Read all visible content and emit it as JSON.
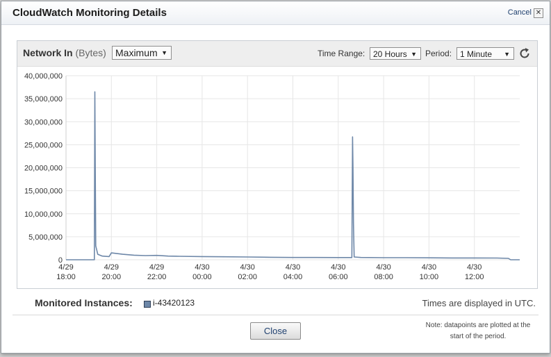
{
  "dialog": {
    "title": "CloudWatch Monitoring Details",
    "cancel_label": "Cancel",
    "close_x": "✕"
  },
  "panel": {
    "metric_name": "Network In",
    "metric_unit": "(Bytes)",
    "statistic": "Maximum",
    "time_range_label": "Time Range:",
    "time_range_value": "20 Hours",
    "period_label": "Period:",
    "period_value": "1 Minute"
  },
  "footer": {
    "monitored_label": "Monitored Instances:",
    "instance_id": "i-43420123",
    "utc_note": "Times are displayed in UTC.",
    "close_label": "Close",
    "note_line1": "Note: datapoints are plotted at the",
    "note_line2": "start of the period."
  },
  "colors": {
    "series": "#6d87a8",
    "series_dark": "#2f6f73",
    "grid": "#e6e6e6"
  },
  "chart_data": {
    "type": "line",
    "ylim": [
      0,
      40000000
    ],
    "yticks": [
      "0",
      "5,000,000",
      "10,000,000",
      "15,000,000",
      "20,000,000",
      "25,000,000",
      "30,000,000",
      "35,000,000",
      "40,000,000"
    ],
    "ytick_values": [
      0,
      5000000,
      10000000,
      15000000,
      20000000,
      25000000,
      30000000,
      35000000,
      40000000
    ],
    "xlim_hours": [
      18,
      38
    ],
    "xticks": [
      {
        "hour": 18,
        "date": "4/29",
        "time": "18:00"
      },
      {
        "hour": 20,
        "date": "4/29",
        "time": "20:00"
      },
      {
        "hour": 22,
        "date": "4/29",
        "time": "22:00"
      },
      {
        "hour": 24,
        "date": "4/30",
        "time": "00:00"
      },
      {
        "hour": 26,
        "date": "4/30",
        "time": "02:00"
      },
      {
        "hour": 28,
        "date": "4/30",
        "time": "04:00"
      },
      {
        "hour": 30,
        "date": "4/30",
        "time": "06:00"
      },
      {
        "hour": 32,
        "date": "4/30",
        "time": "08:00"
      },
      {
        "hour": 34,
        "date": "4/30",
        "time": "10:00"
      },
      {
        "hour": 36,
        "date": "4/30",
        "time": "12:00"
      }
    ],
    "grid": true,
    "series": [
      {
        "name": "i-43420123",
        "points": [
          [
            18.0,
            0
          ],
          [
            19.25,
            0
          ],
          [
            19.27,
            36500000
          ],
          [
            19.29,
            20000000
          ],
          [
            19.31,
            3000000
          ],
          [
            19.4,
            1200000
          ],
          [
            19.6,
            800000
          ],
          [
            19.9,
            700000
          ],
          [
            20.0,
            1500000
          ],
          [
            20.5,
            1200000
          ],
          [
            21.0,
            1000000
          ],
          [
            21.5,
            900000
          ],
          [
            22.0,
            950000
          ],
          [
            22.5,
            800000
          ],
          [
            23.0,
            750000
          ],
          [
            24.0,
            700000
          ],
          [
            25.0,
            650000
          ],
          [
            26.0,
            600000
          ],
          [
            27.0,
            550000
          ],
          [
            28.0,
            500000
          ],
          [
            29.0,
            500000
          ],
          [
            30.0,
            480000
          ],
          [
            30.6,
            480000
          ],
          [
            30.63,
            26700000
          ],
          [
            30.65,
            20000000
          ],
          [
            30.67,
            8000000
          ],
          [
            30.7,
            600000
          ],
          [
            31.0,
            500000
          ],
          [
            32.0,
            450000
          ],
          [
            33.0,
            450000
          ],
          [
            34.0,
            420000
          ],
          [
            35.0,
            400000
          ],
          [
            36.0,
            400000
          ],
          [
            37.0,
            380000
          ],
          [
            37.5,
            300000
          ],
          [
            37.6,
            0
          ],
          [
            38.0,
            0
          ]
        ]
      }
    ]
  }
}
